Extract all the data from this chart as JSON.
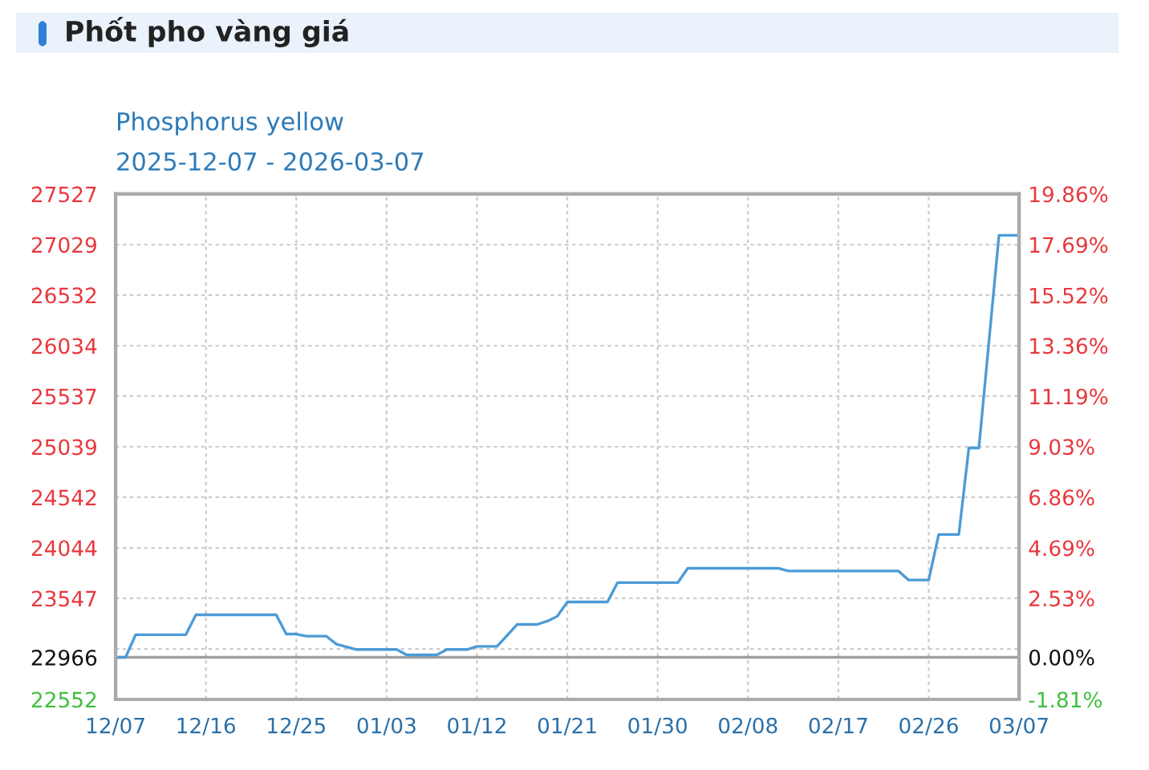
{
  "chart_data": {
    "type": "line",
    "title": "Phốt pho vàng giá",
    "subtitle": "Phosphorus yellow",
    "annotations": [
      "2025-12-07 - 2026-03-07"
    ],
    "x": [
      "2025-12-07",
      "2025-12-08",
      "2025-12-09",
      "2025-12-14",
      "2025-12-15",
      "2025-12-23",
      "2025-12-24",
      "2025-12-25",
      "2025-12-26",
      "2025-12-28",
      "2025-12-29",
      "2025-12-31",
      "2026-01-04",
      "2026-01-05",
      "2026-01-08",
      "2026-01-09",
      "2026-01-11",
      "2026-01-12",
      "2026-01-14",
      "2026-01-16",
      "2026-01-18",
      "2026-01-19",
      "2026-01-20",
      "2026-01-21",
      "2026-01-25",
      "2026-01-26",
      "2026-02-01",
      "2026-02-02",
      "2026-02-11",
      "2026-02-12",
      "2026-02-23",
      "2026-02-24",
      "2026-02-26",
      "2026-02-27",
      "2026-03-01",
      "2026-03-02",
      "2026-03-03",
      "2026-03-05",
      "2026-03-07"
    ],
    "series": [
      {
        "color": "#4c9bd6",
        "values": [
          22966,
          22966,
          23189,
          23189,
          23385,
          23385,
          23195,
          23195,
          23174,
          23174,
          23096,
          23043,
          23043,
          22990,
          22990,
          23043,
          23043,
          23074,
          23074,
          23290,
          23290,
          23322,
          23370,
          23511,
          23511,
          23701,
          23701,
          23843,
          23843,
          23816,
          23816,
          23727,
          23727,
          24175,
          24175,
          25027,
          25027,
          27121,
          27121
        ]
      }
    ],
    "xlim": [
      "2025-12-07",
      "2026-03-07"
    ],
    "xticks": [
      {
        "value": "2025-12-07",
        "label": "12/07"
      },
      {
        "value": "2025-12-16",
        "label": "12/16"
      },
      {
        "value": "2025-12-25",
        "label": "12/25"
      },
      {
        "value": "2026-01-03",
        "label": "01/03"
      },
      {
        "value": "2026-01-12",
        "label": "01/12"
      },
      {
        "value": "2026-01-21",
        "label": "01/21"
      },
      {
        "value": "2026-01-30",
        "label": "01/30"
      },
      {
        "value": "2026-02-08",
        "label": "02/08"
      },
      {
        "value": "2026-02-17",
        "label": "02/17"
      },
      {
        "value": "2026-02-26",
        "label": "02/26"
      },
      {
        "value": "2026-03-07",
        "label": "03/07"
      }
    ],
    "ylim": [
      22552,
      27527
    ],
    "yticks": [
      22552,
      {
        "value": 23049,
        "label": null
      },
      23547,
      24044,
      24542,
      25039,
      25537,
      26034,
      26532,
      27029,
      27527,
      22966
    ],
    "y2lim": [
      -1.81,
      19.86
    ],
    "y2ticks": [
      {
        "value": -1.81,
        "label": "-1.81%"
      },
      {
        "value": 0,
        "label": "0.00%"
      },
      {
        "value": 2.53,
        "label": "2.53%"
      },
      {
        "value": 4.69,
        "label": "4.69%"
      },
      {
        "value": 6.86,
        "label": "6.86%"
      },
      {
        "value": 9.03,
        "label": "9.03%"
      },
      {
        "value": 11.19,
        "label": "11.19%"
      },
      {
        "value": 13.36,
        "label": "13.36%"
      },
      {
        "value": 15.52,
        "label": "15.52%"
      },
      {
        "value": 17.69,
        "label": "17.69%"
      },
      {
        "value": 19.86,
        "label": "19.86%"
      }
    ],
    "ref_lines": [
      {
        "axis": "y",
        "value": 22966,
        "color": "#a0a0a0"
      }
    ],
    "grid": true,
    "legend": false,
    "marker": "none",
    "line_style": "solid"
  }
}
